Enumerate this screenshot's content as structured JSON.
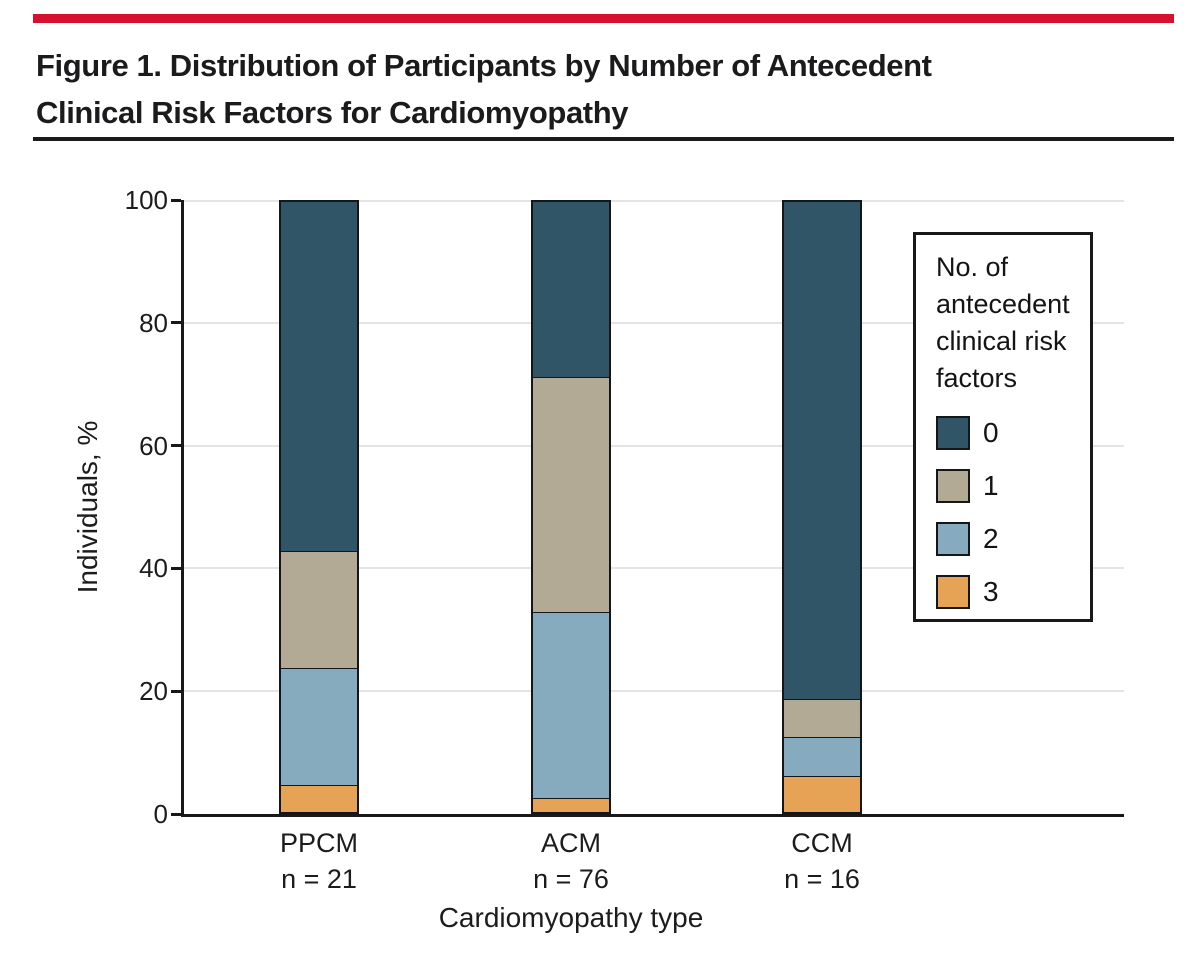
{
  "figure": {
    "title_line1": "Figure 1. Distribution of Participants by Number of Antecedent",
    "title_line2": "Clinical Risk Factors for Cardiomyopathy",
    "accent_color": "#D6112D"
  },
  "chart_data": {
    "type": "bar",
    "stacked": true,
    "title": "",
    "xlabel": "Cardiomyopathy type",
    "ylabel": "Individuals, %",
    "ylim": [
      0,
      100
    ],
    "yticks": [
      0,
      20,
      40,
      60,
      80,
      100
    ],
    "grid": "horizontal",
    "categories": [
      "PPCM",
      "ACM",
      "CCM"
    ],
    "category_sublabels": [
      "n = 21",
      "n = 76",
      "n = 16"
    ],
    "series": [
      {
        "name": "0",
        "color": "#2F5566",
        "values": [
          57.2,
          28.9,
          81.3
        ]
      },
      {
        "name": "1",
        "color": "#B3AA95",
        "values": [
          19.0,
          38.2,
          6.2
        ]
      },
      {
        "name": "2",
        "color": "#86ABBE",
        "values": [
          19.0,
          30.3,
          6.3
        ]
      },
      {
        "name": "3",
        "color": "#E6A355",
        "values": [
          4.8,
          2.6,
          6.2
        ]
      }
    ],
    "legend": {
      "title": "No. of antecedent clinical risk factors",
      "title_lines": [
        "No. of",
        "antecedent",
        "clinical risk",
        "factors"
      ],
      "entries": [
        "0",
        "1",
        "2",
        "3"
      ],
      "position": "upper right"
    }
  }
}
